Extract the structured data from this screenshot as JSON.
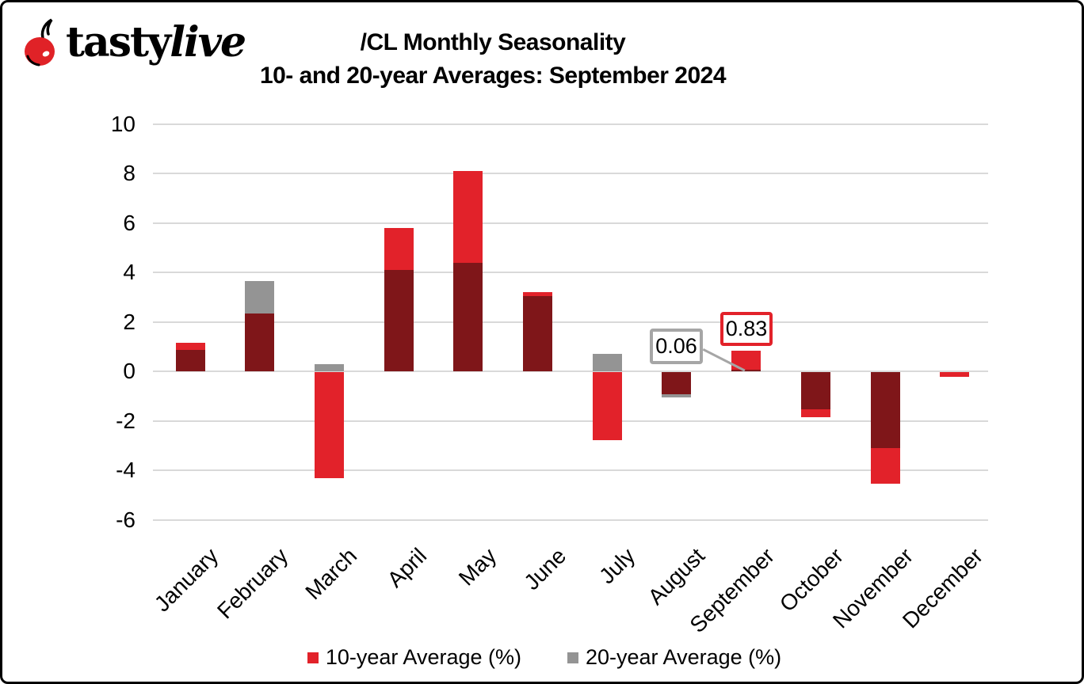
{
  "logo": {
    "brand_first": "tasty",
    "brand_second": "live",
    "cherry_color": "#e02227"
  },
  "title": {
    "line1": "/CL Monthly Seasonality",
    "line2": "10- and 20-year Averages: September 2024"
  },
  "chart_data": {
    "type": "bar",
    "title": "/CL Monthly Seasonality",
    "subtitle": "10- and 20-year Averages: September 2024",
    "categories": [
      "January",
      "February",
      "March",
      "April",
      "May",
      "June",
      "July",
      "August",
      "September",
      "October",
      "November",
      "December"
    ],
    "series": [
      {
        "name": "10-year Average (%)",
        "color": "#e2222a",
        "values": [
          1.15,
          2.35,
          -4.3,
          5.8,
          8.1,
          3.2,
          -2.75,
          -0.93,
          0.83,
          -1.85,
          -4.55,
          -0.2
        ]
      },
      {
        "name": "20-year Average (%)",
        "color": "#949494",
        "values": [
          0.87,
          3.65,
          0.3,
          4.1,
          4.4,
          3.05,
          0.7,
          -1.05,
          0.06,
          -1.55,
          -3.1,
          0
        ]
      }
    ],
    "overlap_color": "#7f1619",
    "bar_style": "overlapped",
    "ylim": [
      -6,
      10
    ],
    "yticks": [
      10,
      8,
      6,
      4,
      2,
      0,
      -2,
      -4,
      -6
    ],
    "grid": true,
    "gridline_color": "#d9d9d9",
    "legend_position": "bottom",
    "annotations": [
      {
        "label": "0.06",
        "month": "September",
        "series": "20-year Average (%)",
        "border_color": "#a6a6a6",
        "has_leader_line": true
      },
      {
        "label": "0.83",
        "month": "September",
        "series": "10-year Average (%)",
        "border_color": "#e2222a",
        "has_leader_line": false
      }
    ]
  },
  "legend": {
    "items": [
      {
        "label": "10-year Average (%)",
        "color": "#e2222a"
      },
      {
        "label": "20-year Average (%)",
        "color": "#949494"
      }
    ]
  }
}
